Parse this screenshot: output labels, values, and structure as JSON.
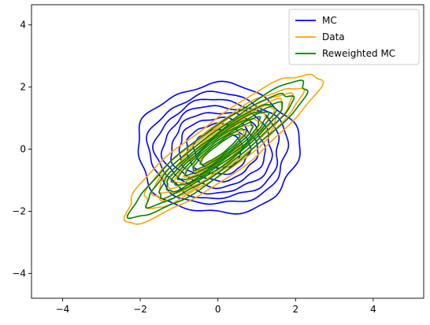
{
  "chart_data": {
    "type": "contour",
    "title": "",
    "xlabel": "",
    "ylabel": "",
    "xlim": [
      -4.8,
      5.3
    ],
    "ylim": [
      -4.8,
      4.65
    ],
    "xticks": [
      -4,
      -2,
      0,
      2,
      4
    ],
    "yticks": [
      -4,
      -2,
      0,
      2,
      4
    ],
    "grid": false,
    "legend": {
      "placement": "top-right"
    },
    "series": [
      {
        "name": "MC",
        "color": "#0000ff",
        "distribution": {
          "mean": [
            0,
            0
          ],
          "cov": [
            [
              1.1,
              0.0
            ],
            [
              0.0,
              1.1
            ]
          ]
        },
        "contour_radii": [
          0.95,
          1.25,
          1.55,
          1.85,
          2.15,
          2.45,
          2.75,
          3.2
        ]
      },
      {
        "name": "Data",
        "color": "#ffa500",
        "distribution": {
          "mean": [
            0.1,
            0.05
          ],
          "cov": [
            [
              1.7,
              1.45
            ],
            [
              1.45,
              1.55
            ]
          ]
        },
        "contour_radii": [
          0.7,
          0.95,
          1.2,
          1.45,
          1.7,
          1.95,
          2.2,
          2.5,
          3.1
        ]
      },
      {
        "name": "Reweighted MC",
        "color": "#008000",
        "distribution": {
          "mean": [
            0.05,
            0.0
          ],
          "cov": [
            [
              1.35,
              1.2
            ],
            [
              1.2,
              1.25
            ]
          ]
        },
        "contour_radii": [
          0.7,
          0.95,
          1.2,
          1.45,
          1.7,
          1.95,
          2.2,
          2.6,
          3.15
        ]
      }
    ]
  }
}
